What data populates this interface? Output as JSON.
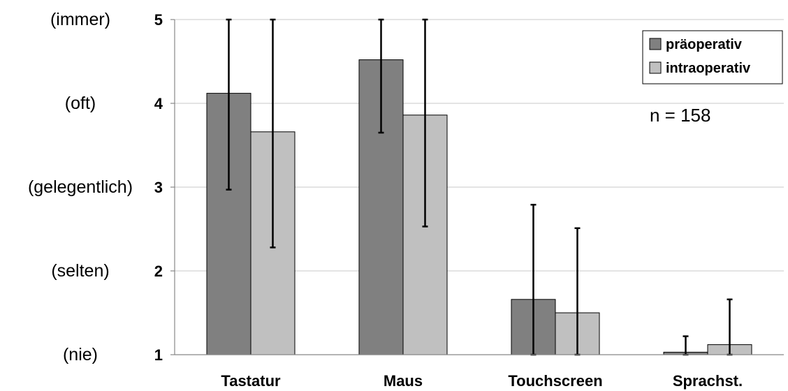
{
  "chart_data": {
    "type": "bar",
    "categories": [
      "Tastatur",
      "Maus",
      "Touchscreen",
      "Sprachst."
    ],
    "series": [
      {
        "name": "präoperativ",
        "color": "#808080",
        "values": [
          4.12,
          4.52,
          1.66,
          1.03
        ],
        "error_low": [
          2.97,
          3.65,
          1.0,
          1.0
        ],
        "error_high": [
          5.0,
          5.0,
          2.79,
          1.22
        ]
      },
      {
        "name": "intraoperativ",
        "color": "#c0c0c0",
        "values": [
          3.66,
          3.86,
          1.5,
          1.12
        ],
        "error_low": [
          2.28,
          2.53,
          1.0,
          1.0
        ],
        "error_high": [
          5.0,
          5.0,
          2.51,
          1.66
        ]
      }
    ],
    "yticks": [
      {
        "value": 1,
        "label": "1",
        "word": "(nie)"
      },
      {
        "value": 2,
        "label": "2",
        "word": "(selten)"
      },
      {
        "value": 3,
        "label": "3",
        "word": "(gelegentlich)"
      },
      {
        "value": 4,
        "label": "4",
        "word": "(oft)"
      },
      {
        "value": 5,
        "label": "5",
        "word": "(immer)"
      }
    ],
    "ylim": [
      1,
      5
    ],
    "grid": true,
    "legend_position": "top-right",
    "annotation": "n = 158"
  }
}
